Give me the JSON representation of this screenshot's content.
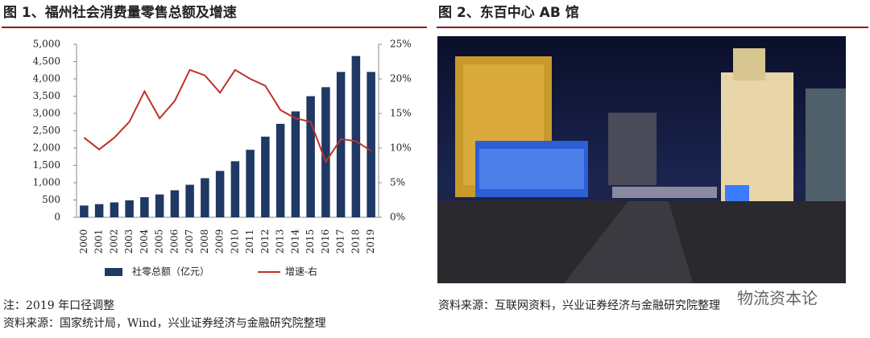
{
  "chart_data": {
    "type": "bar-line",
    "title": "图 1、福州社会消费量零售总额及增速",
    "categories": [
      "2000",
      "2001",
      "2002",
      "2003",
      "2004",
      "2005",
      "2006",
      "2007",
      "2008",
      "2009",
      "2010",
      "2011",
      "2012",
      "2013",
      "2014",
      "2015",
      "2016",
      "2017",
      "2018",
      "2019"
    ],
    "series": [
      {
        "name": "社零总额（亿元）",
        "type": "bar",
        "color": "#1f3864",
        "values": [
          340,
          380,
          430,
          490,
          580,
          660,
          780,
          940,
          1130,
          1340,
          1620,
          1950,
          2330,
          2700,
          3060,
          3500,
          3760,
          4200,
          4660,
          4200
        ]
      },
      {
        "name": "增速-右",
        "type": "line",
        "axis": "y2",
        "color": "#c0302a",
        "values": [
          11.5,
          9.8,
          11.5,
          13.8,
          18.2,
          14.3,
          16.8,
          21.3,
          20.5,
          18,
          21.3,
          20,
          19,
          15.5,
          14.3,
          13.8,
          8,
          11.3,
          11,
          9.6
        ]
      }
    ],
    "ylim": [
      0,
      5000
    ],
    "yticks": [
      0,
      500,
      {
        "value": 1000,
        "label": "1,000"
      },
      {
        "value": 1500,
        "label": "1,500"
      },
      {
        "value": 2000,
        "label": "2,000"
      },
      {
        "value": 2500,
        "label": "2,500"
      },
      {
        "value": 3000,
        "label": "3,000"
      },
      {
        "value": 3500,
        "label": "3,500"
      },
      {
        "value": 4000,
        "label": "4,000"
      },
      {
        "value": 4500,
        "label": "4,500"
      },
      {
        "value": 5000,
        "label": "5,000"
      }
    ],
    "y2lim": [
      0,
      25
    ],
    "y2ticks": [
      {
        "value": 0,
        "label": "0%"
      },
      {
        "value": 5,
        "label": "5%"
      },
      {
        "value": 10,
        "label": "10%"
      },
      {
        "value": 15,
        "label": "15%"
      },
      {
        "value": 20,
        "label": "20%"
      },
      {
        "value": 25,
        "label": "25%"
      }
    ],
    "legend": "bottom"
  },
  "notes": [
    "注：2019 年口径调整",
    "资料来源：国家统计局，Wind，兴业证券经济与金融研究院整理"
  ],
  "figure2": {
    "title": "图 2、东百中心 AB 馆",
    "source": "资料来源：互联网资料，兴业证券经济与金融研究院整理"
  },
  "watermark": "物流资本论"
}
